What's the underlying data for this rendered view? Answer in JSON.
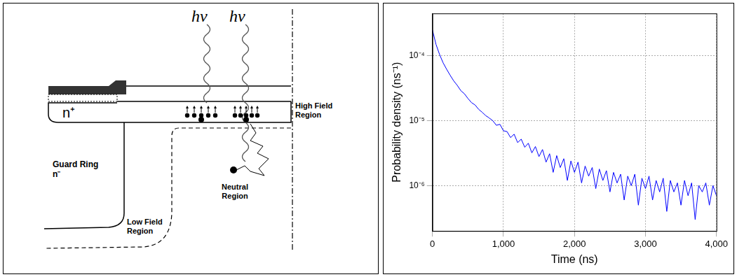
{
  "diagram": {
    "photon_labels": [
      "hν",
      "hν"
    ],
    "contact_label": "n⁺",
    "guard_ring": [
      "Guard Ring",
      "n⁻"
    ],
    "high_field": [
      "High Field",
      "Region"
    ],
    "low_field": [
      "Low Field",
      "Region"
    ],
    "neutral": [
      "Neutral",
      "Region"
    ]
  },
  "chart_data": {
    "type": "line",
    "x_label": "Time (ns)",
    "y_label": "Probability density (ns⁻¹)",
    "color": "#0000ff",
    "log": "y",
    "grid": true,
    "xlim": [
      0,
      4000
    ],
    "xticks": [
      0,
      1000,
      2000,
      3000,
      4000
    ],
    "ylim": [
      2e-07,
      0.00045
    ],
    "yticks": [
      {
        "value": 1e-06,
        "label": "10⁻⁶"
      },
      {
        "value": 1e-05,
        "label": "10⁻⁵"
      },
      {
        "value": 0.0001,
        "label": "10⁻⁴"
      }
    ],
    "x": [
      0,
      50,
      100,
      150,
      200,
      250,
      300,
      350,
      400,
      450,
      500,
      550,
      600,
      650,
      700,
      750,
      800,
      850,
      900,
      950,
      1000,
      1050,
      1100,
      1150,
      1200,
      1250,
      1300,
      1350,
      1400,
      1450,
      1500,
      1550,
      1600,
      1650,
      1700,
      1750,
      1800,
      1850,
      1900,
      1950,
      2000,
      2050,
      2100,
      2150,
      2200,
      2250,
      2300,
      2350,
      2400,
      2450,
      2500,
      2550,
      2600,
      2650,
      2700,
      2750,
      2800,
      2850,
      2900,
      2950,
      3000,
      3050,
      3100,
      3150,
      3200,
      3250,
      3300,
      3350,
      3400,
      3450,
      3500,
      3550,
      3600,
      3650,
      3700,
      3750,
      3800,
      3850,
      3900,
      3950,
      4000
    ],
    "values": [
      0.00025,
      0.00015,
      0.000105,
      7.8e-05,
      6.2e-05,
      5e-05,
      4.1e-05,
      3.5e-05,
      2.9e-05,
      2.6e-05,
      2.2e-05,
      1.9e-05,
      1.75e-05,
      1.5e-05,
      1.35e-05,
      1.2e-05,
      1.1e-05,
      1e-05,
      8.5e-06,
      8.8e-06,
      7e-06,
      6.8e-06,
      5.5e-06,
      6.2e-06,
      4.6e-06,
      5.2e-06,
      3.9e-06,
      4.5e-06,
      3.2e-06,
      4e-06,
      2.8e-06,
      3.6e-06,
      2.3e-06,
      3.1e-06,
      1.6e-06,
      2.9e-06,
      1.9e-06,
      2.6e-06,
      1.2e-06,
      2.4e-06,
      1.6e-06,
      2.3e-06,
      1.1e-06,
      2e-06,
      1.4e-06,
      1.9e-06,
      9e-07,
      1.8e-06,
      1.2e-06,
      1.7e-06,
      8e-07,
      1.6e-06,
      1.1e-06,
      1.5e-06,
      6e-07,
      1.4e-06,
      1e-06,
      1.5e-06,
      5e-07,
      1.3e-06,
      9e-07,
      1.4e-06,
      6e-07,
      1.2e-06,
      8e-07,
      1.3e-06,
      4e-07,
      1.2e-06,
      8e-07,
      1.1e-06,
      5e-07,
      1.2e-06,
      7e-07,
      1.1e-06,
      3e-07,
      1e-06,
      8e-07,
      1.1e-06,
      5e-07,
      1e-06,
      7e-07
    ]
  }
}
